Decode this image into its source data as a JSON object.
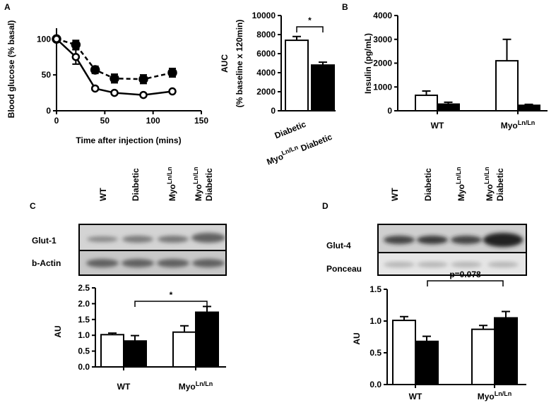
{
  "panel_labels": [
    "A",
    "B",
    "C",
    "D"
  ],
  "blots": [
    {
      "columns": [
        "WT",
        "Diabetic",
        {
          "text": "Myo",
          "sup": "Ln/Ln"
        },
        {
          "text": "Myo",
          "sup": "Ln/Ln",
          "line2": "Diabetic"
        }
      ],
      "rows": [
        "Glut-1",
        "b-Actin"
      ]
    },
    {
      "columns": [
        "WT",
        "Diabetic",
        {
          "text": "Myo",
          "sup": "Ln/Ln"
        },
        {
          "text": "Myo",
          "sup": "Ln/Ln",
          "line2": "Diabetic"
        }
      ],
      "rows": [
        "Glut-4",
        "Ponceau"
      ]
    }
  ],
  "chart_data": [
    {
      "type": "line",
      "xlabel": "Time after injection (mins)",
      "ylabel": [
        "Blood glucose (% basal)"
      ],
      "x": [
        0,
        20,
        40,
        60,
        90,
        120
      ],
      "series": [
        {
          "color": "#000000",
          "linestyle": "dashed",
          "marker": "filled",
          "values": [
            100,
            92,
            57,
            45,
            44,
            53
          ],
          "errors": [
            0,
            6,
            5,
            6,
            6,
            6
          ]
        },
        {
          "color": "#000000",
          "linestyle": "solid",
          "marker": "open",
          "values": [
            100,
            75,
            31,
            25,
            22,
            27
          ],
          "errors": [
            0,
            10,
            2,
            2,
            2,
            2
          ]
        }
      ],
      "xlim": [
        0,
        150
      ],
      "xticks": [
        0,
        50,
        100,
        150
      ],
      "ylim": [
        0,
        115
      ],
      "yticks": [
        0,
        50,
        100
      ]
    },
    {
      "type": "bar",
      "ylabel": [
        "AUC",
        "(% baseline x 120min)"
      ],
      "categories": [
        "Diabetic",
        {
          "text": "Myo",
          "sup": "Ln/Ln",
          "after": " Diabetic"
        }
      ],
      "values": [
        7400,
        4800
      ],
      "errors": [
        400,
        300
      ],
      "colors": [
        "#ffffff",
        "#000000"
      ],
      "ylim": [
        0,
        10000
      ],
      "yticks": [
        0,
        2000,
        4000,
        6000,
        8000,
        10000
      ],
      "annotation": "*"
    },
    {
      "type": "bar",
      "ylabel": [
        "Insulin (pg/mL)"
      ],
      "categories": [
        "WT",
        {
          "text": "Myo",
          "sup": "Ln/Ln"
        }
      ],
      "series": [
        {
          "color": "#ffffff",
          "values": [
            650,
            2100
          ],
          "errors": [
            180,
            900
          ]
        },
        {
          "color": "#000000",
          "values": [
            280,
            230
          ],
          "errors": [
            80,
            40
          ]
        }
      ],
      "ylim": [
        0,
        4000
      ],
      "yticks": [
        0,
        1000,
        2000,
        3000,
        4000
      ]
    },
    {
      "type": "bar",
      "ylabel": [
        "AU"
      ],
      "categories": [
        "WT",
        {
          "text": "Myo",
          "sup": "Ln/Ln"
        }
      ],
      "series": [
        {
          "color": "#ffffff",
          "values": [
            1.02,
            1.1
          ],
          "errors": [
            0.05,
            0.2
          ]
        },
        {
          "color": "#000000",
          "values": [
            0.82,
            1.73
          ],
          "errors": [
            0.17,
            0.18
          ]
        }
      ],
      "ylim": [
        0,
        2.5
      ],
      "yticks": [
        {
          "value": 0,
          "label": "0.0"
        },
        0.5,
        {
          "value": 1,
          "label": "1.0"
        },
        1.5,
        {
          "value": 2,
          "label": "2.0"
        },
        2.5
      ],
      "annotation": "*"
    },
    {
      "type": "bar",
      "ylabel": [
        "AU"
      ],
      "categories": [
        "WT",
        {
          "text": "Myo",
          "sup": "Ln/Ln"
        }
      ],
      "series": [
        {
          "color": "#ffffff",
          "values": [
            1.01,
            0.87
          ],
          "errors": [
            0.06,
            0.06
          ]
        },
        {
          "color": "#000000",
          "values": [
            0.68,
            1.05
          ],
          "errors": [
            0.08,
            0.1
          ]
        }
      ],
      "ylim": [
        0,
        1.5
      ],
      "yticks": [
        {
          "value": 0,
          "label": "0.0"
        },
        0.5,
        {
          "value": 1,
          "label": "1.0"
        },
        1.5
      ],
      "annotation": "p=0.078"
    }
  ]
}
